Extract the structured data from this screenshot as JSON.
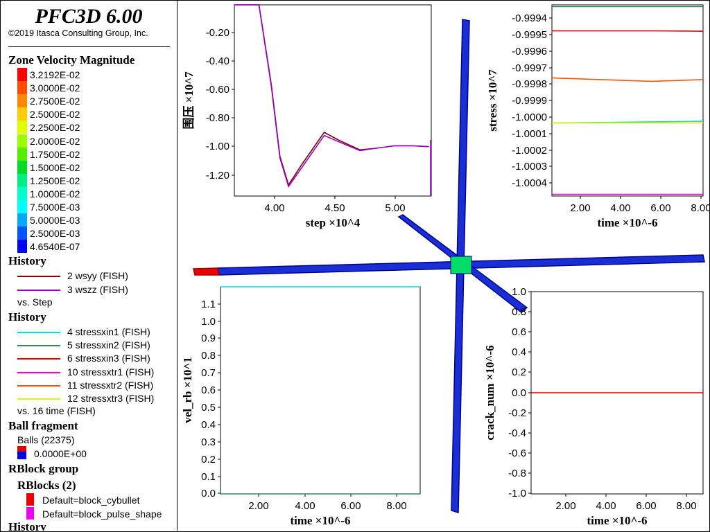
{
  "app": {
    "title": "PFC3D 6.00",
    "copyright": "©2019 Itasca Consulting Group, Inc."
  },
  "legend": {
    "contour_title": "Zone Velocity Magnitude",
    "contour": [
      {
        "label": "3.2192E-02",
        "color": "#ff0000"
      },
      {
        "label": "3.0000E-02",
        "color": "#ff4a00"
      },
      {
        "label": "2.7500E-02",
        "color": "#ff8800"
      },
      {
        "label": "2.5000E-02",
        "color": "#ffcc00"
      },
      {
        "label": "2.2500E-02",
        "color": "#ddff00"
      },
      {
        "label": "2.0000E-02",
        "color": "#99ff00"
      },
      {
        "label": "1.7500E-02",
        "color": "#55ee00"
      },
      {
        "label": "1.5000E-02",
        "color": "#00dd22"
      },
      {
        "label": "1.2500E-02",
        "color": "#00ee88"
      },
      {
        "label": "1.0000E-02",
        "color": "#00ffcc"
      },
      {
        "label": "7.5000E-03",
        "color": "#00ffff"
      },
      {
        "label": "5.0000E-03",
        "color": "#00aaff"
      },
      {
        "label": "2.5000E-03",
        "color": "#0055ff"
      },
      {
        "label": "4.6540E-07",
        "color": "#0000ff"
      }
    ],
    "history1": {
      "title": "History",
      "items": [
        {
          "label": "2 wsyy (FISH)",
          "color": "#800000"
        },
        {
          "label": "3 wszz (FISH)",
          "color": "#9900cc"
        }
      ],
      "vs": "vs. Step"
    },
    "history2": {
      "title": "History",
      "items": [
        {
          "label": "4 stressxin1 (FISH)",
          "color": "#00e0e0"
        },
        {
          "label": "5 stressxin2 (FISH)",
          "color": "#2e8b57"
        },
        {
          "label": "6 stressxin3 (FISH)",
          "color": "#dd0000"
        },
        {
          "label": "10 stressxtr1 (FISH)",
          "color": "#ee00cc"
        },
        {
          "label": "11 stressxtr2 (FISH)",
          "color": "#ff5500"
        },
        {
          "label": "12 stressxtr3 (FISH)",
          "color": "#eeee00"
        }
      ],
      "vs": "vs. 16 time (FISH)"
    },
    "ball": {
      "title": "Ball fragment",
      "label": "Balls (22375)",
      "value": "0.0000E+00"
    },
    "rblock": {
      "title": "RBlock group",
      "subtitle": "RBlocks (2)",
      "items": [
        {
          "label": "Default=block_cybullet",
          "color": "#ee0000"
        },
        {
          "label": "Default=block_pulse_shape",
          "color": "#ee00ee"
        }
      ]
    },
    "history3_title": "History"
  },
  "charts": {
    "top_left": {
      "type": "line",
      "ylabel": "围压 ×10^7",
      "xlabel": "step ×10^4",
      "yticks": [
        "-0.20",
        "-0.40",
        "-0.60",
        "-0.80",
        "-1.00",
        "-1.20"
      ],
      "xticks": [
        "4.00",
        "4.50",
        "5.00"
      ]
    },
    "top_right": {
      "type": "line",
      "ylabel": "stress ×10^7",
      "xlabel": "time ×10^-6",
      "yticks": [
        "-0.9994",
        "-0.9995",
        "-0.9996",
        "-0.9997",
        "-0.9998",
        "-0.9999",
        "-1.0000",
        "-1.0001",
        "-1.0002",
        "-1.0003",
        "-1.0004"
      ],
      "xticks": [
        "2.00",
        "4.00",
        "6.00",
        "8.00"
      ]
    },
    "bottom_left": {
      "type": "line",
      "ylabel": "vel_rb ×10^1",
      "xlabel": "time ×10^-6",
      "yticks": [
        "1.1",
        "1.0",
        "0.9",
        "0.8",
        "0.7",
        "0.6",
        "0.5",
        "0.4",
        "0.3",
        "0.2",
        "0.1",
        "0.0"
      ],
      "xticks": [
        "2.00",
        "4.00",
        "6.00",
        "8.00"
      ]
    },
    "bottom_right": {
      "type": "line",
      "ylabel": "crack_num ×10^-6",
      "xlabel": "time ×10^-6",
      "yticks": [
        "1.0",
        "0.8",
        "0.6",
        "0.4",
        "0.2",
        "0.0",
        "-0.2",
        "-0.4",
        "-0.6",
        "-0.8",
        "-1.0"
      ],
      "xticks": [
        "2.00",
        "4.00",
        "6.00",
        "8.00"
      ]
    }
  },
  "chart_data": [
    {
      "type": "line",
      "xlabel": "step ×10^4",
      "ylabel": "围压 ×10^7",
      "xlim": [
        3.7,
        5.3
      ],
      "ylim": [
        -1.3,
        -0.1
      ],
      "series": [
        {
          "color": "#800000",
          "x": [
            3.7,
            3.9,
            4.0,
            4.07,
            4.14,
            4.25,
            4.43,
            4.55,
            4.72,
            4.85,
            5.0,
            5.15,
            5.28
          ],
          "y": [
            -0.1,
            -0.1,
            -0.6,
            -1.05,
            -1.23,
            -1.1,
            -0.9,
            -0.95,
            -1.01,
            -1.0,
            -0.985,
            -0.985,
            -0.99
          ]
        },
        {
          "color": "#9900cc",
          "x": [
            3.7,
            3.9,
            4.0,
            4.07,
            4.14,
            4.25,
            4.43,
            4.55,
            4.72,
            4.85,
            5.0,
            5.15,
            5.28
          ],
          "y": [
            -0.1,
            -0.1,
            -0.61,
            -1.06,
            -1.24,
            -1.12,
            -0.92,
            -0.96,
            -1.015,
            -1.0,
            -0.985,
            -0.985,
            -0.99
          ]
        }
      ]
    },
    {
      "type": "line",
      "xlabel": "time ×10^-6",
      "ylabel": "stress ×10^7",
      "xlim": [
        0.2,
        9.0
      ],
      "ylim": [
        -1.00045,
        -0.99935
      ],
      "series": [
        {
          "color": "#2e8b57",
          "x": [
            0.2,
            9.0
          ],
          "y": [
            -0.99936,
            -0.99936
          ]
        },
        {
          "color": "#dd0000",
          "x": [
            0.2,
            6.5,
            9.0
          ],
          "y": [
            -0.9995,
            -0.9995,
            -0.999502
          ]
        },
        {
          "color": "#ff5500",
          "x": [
            0.2,
            3.0,
            6.0,
            9.0
          ],
          "y": [
            -0.99977,
            -0.99978,
            -0.99979,
            -0.99978
          ]
        },
        {
          "color": "#00e0e0",
          "x": [
            0.2,
            9.0
          ],
          "y": [
            -1.00003,
            -1.00002
          ]
        },
        {
          "color": "#eeee00",
          "x": [
            0.2,
            9.0
          ],
          "y": [
            -1.00003,
            -1.00003
          ]
        },
        {
          "color": "#ee00cc",
          "x": [
            0.2,
            9.0
          ],
          "y": [
            -1.00044,
            -1.00044
          ]
        }
      ]
    },
    {
      "type": "line",
      "xlabel": "time ×10^-6",
      "ylabel": "vel_rb ×10^1",
      "xlim": [
        0.2,
        9.2
      ],
      "ylim": [
        0.0,
        1.15
      ],
      "series": [
        {
          "color": "#00e0e0",
          "x": [
            0.2,
            9.2
          ],
          "y": [
            1.19,
            1.19
          ]
        },
        {
          "color": "#2e8b57",
          "x": [
            0.2,
            9.2
          ],
          "y": [
            0.0,
            0.0
          ]
        }
      ]
    },
    {
      "type": "line",
      "xlabel": "time ×10^-6",
      "ylabel": "crack_num ×10^-6",
      "xlim": [
        0.2,
        9.2
      ],
      "ylim": [
        -1.0,
        1.0
      ],
      "series": [
        {
          "color": "#dd0000",
          "x": [
            0.2,
            9.2
          ],
          "y": [
            0.0,
            0.0
          ]
        }
      ]
    }
  ],
  "model": {
    "rod_color": "#1a2ed6",
    "rod_edge": "#00008b",
    "joint_color": "#00dd66",
    "bullet_color": "#ee0000"
  }
}
